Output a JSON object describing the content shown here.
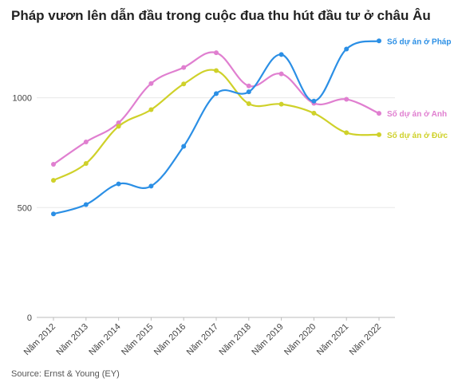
{
  "title": "Pháp vươn lên dẫn đầu trong cuộc đua thu hút đầu tư ở châu Âu",
  "source": "Source: Ernst & Young (EY)",
  "chart_data": {
    "type": "line",
    "x": [
      "Năm 2012",
      "Năm 2013",
      "Năm 2014",
      "Năm 2015",
      "Năm 2016",
      "Năm 2017",
      "Năm 2018",
      "Năm 2019",
      "Năm 2020",
      "Năm 2021",
      "Năm 2022"
    ],
    "ylim": [
      0,
      1300
    ],
    "yticks": [
      "0",
      "500",
      "1000"
    ],
    "grid": "horizontal",
    "legend": "inline labels at line ends (right)",
    "series": [
      {
        "name": "Số dự án ở Anh",
        "color": "#e07fd0",
        "values": [
          697,
          799,
          886,
          1065,
          1138,
          1205,
          1054,
          1109,
          975,
          993,
          929
        ]
      },
      {
        "name": "Số dự án ở Đức",
        "color": "#cfd12a",
        "values": [
          624,
          701,
          870,
          946,
          1063,
          1124,
          973,
          971,
          930,
          841,
          832
        ]
      },
      {
        "name": "Số dự án ở Pháp",
        "color": "#2b8fe5",
        "values": [
          471,
          514,
          608,
          598,
          779,
          1019,
          1027,
          1197,
          985,
          1222,
          1259
        ]
      }
    ]
  }
}
